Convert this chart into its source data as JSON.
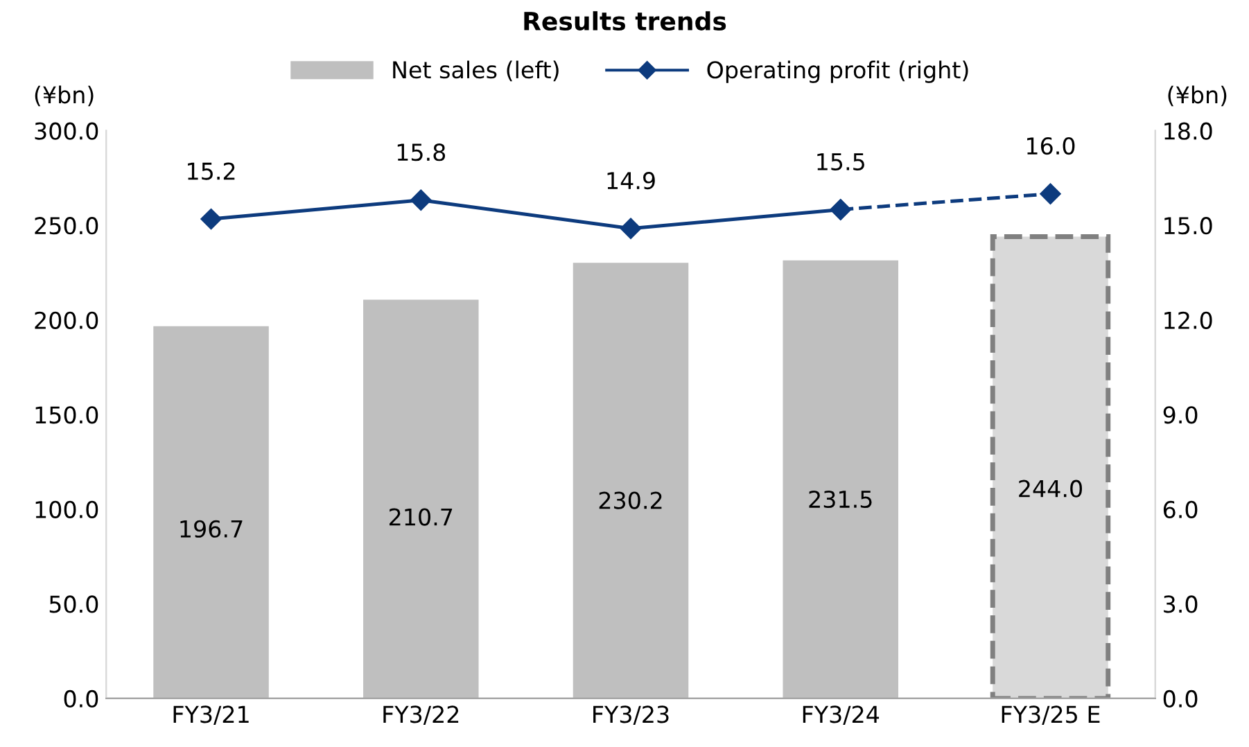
{
  "chart_data": {
    "type": "bar",
    "title": "Results trends",
    "ylabel": "(¥bn)",
    "y2label": "(¥bn)",
    "categories": [
      "FY3/21",
      "FY3/22",
      "FY3/23",
      "FY3/24",
      "FY3/25 E"
    ],
    "series": [
      {
        "name": "Net sales (left)",
        "color": "#bfbfbf",
        "values": [
          196.7,
          210.7,
          230.2,
          231.5,
          null
        ],
        "value_labels": [
          "196.7",
          "210.7",
          "230.2",
          "231.5",
          null
        ]
      },
      {
        "color": "#d9d9d9",
        "line_style": "dashed",
        "values": [
          null,
          null,
          null,
          null,
          244.0
        ],
        "value_labels": [
          null,
          null,
          null,
          null,
          "244.0"
        ]
      },
      {
        "name": "Operating profit (right)",
        "type": "line",
        "axis": "y2",
        "color": "#0d3b7e",
        "marker": "diamond",
        "line_style": "solid",
        "values": [
          15.2,
          15.8,
          14.9,
          15.5,
          null
        ],
        "value_labels": [
          "15.2",
          "15.8",
          "14.9",
          "15.5",
          null
        ]
      },
      {
        "type": "line",
        "axis": "y2",
        "color": "#0d3b7e",
        "marker": "diamond",
        "line_style": "dashed",
        "values": [
          null,
          null,
          null,
          15.5,
          16.0
        ],
        "value_labels": [
          null,
          null,
          null,
          null,
          "16.0"
        ]
      }
    ],
    "ylim": [
      0,
      300
    ],
    "yticks": [
      {
        "value": 0,
        "label": "0.0"
      },
      {
        "value": 50,
        "label": "50.0"
      },
      {
        "value": 100,
        "label": "100.0"
      },
      {
        "value": 150,
        "label": "150.0"
      },
      {
        "value": 200,
        "label": "200.0"
      },
      {
        "value": 250,
        "label": "250.0"
      },
      {
        "value": 300,
        "label": "300.0"
      }
    ],
    "y2lim": [
      0,
      18
    ],
    "y2ticks": [
      {
        "value": 0,
        "label": "0.0"
      },
      {
        "value": 3,
        "label": "3.0"
      },
      {
        "value": 6,
        "label": "6.0"
      },
      {
        "value": 9,
        "label": "9.0"
      },
      {
        "value": 12,
        "label": "12.0"
      },
      {
        "value": 15,
        "label": "15.0"
      },
      {
        "value": 18,
        "label": "18.0"
      }
    ],
    "legend": "top",
    "grid": false
  }
}
